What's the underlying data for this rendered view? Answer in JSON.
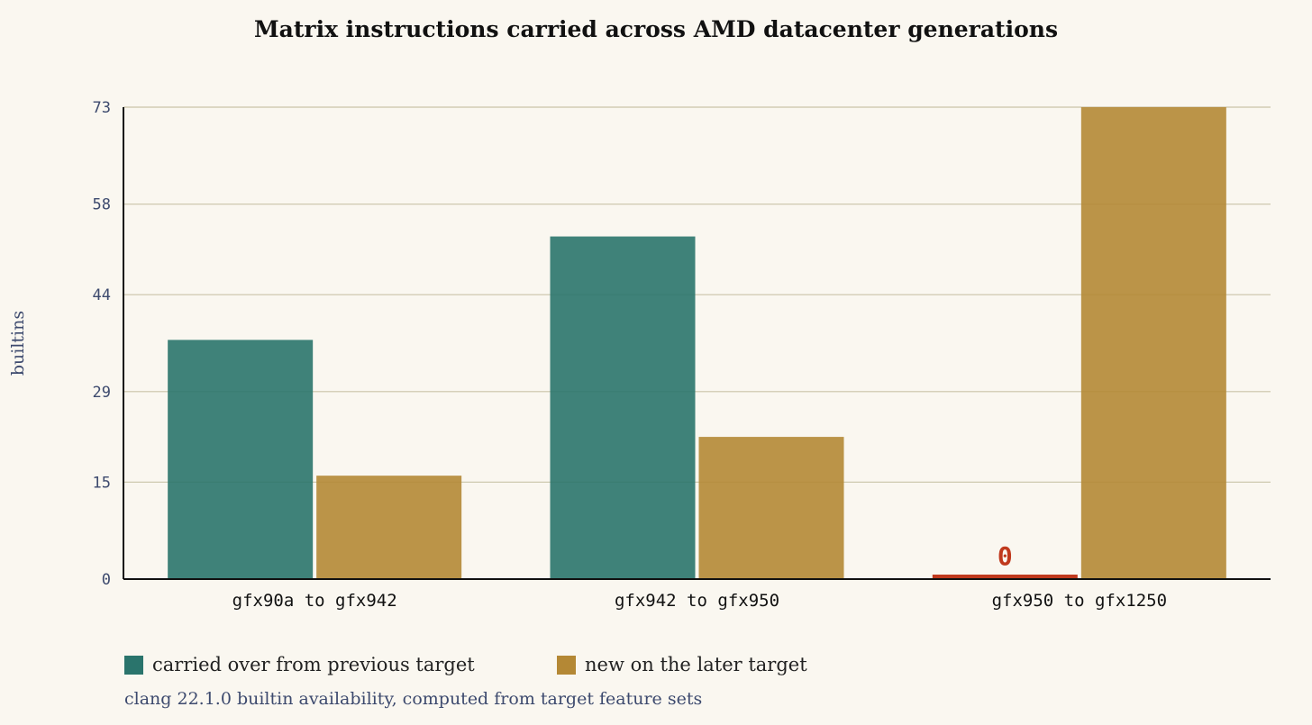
{
  "colors": {
    "background": "#faf7f0",
    "carried": "#2a746c",
    "new": "#b48835",
    "zero_marker": "#c0391d",
    "grid": "#c9c4a8",
    "axis": "#111111",
    "tick_text": "#3d4a6e"
  },
  "chart_data": {
    "type": "bar",
    "title": "Matrix instructions carried across AMD datacenter generations",
    "xlabel": "",
    "ylabel": "builtins",
    "categories": [
      "gfx90a to gfx942",
      "gfx942 to gfx950",
      "gfx950 to gfx1250"
    ],
    "series": [
      {
        "name": "carried over from previous target",
        "values": [
          37,
          53,
          0
        ]
      },
      {
        "name": "new on the later target",
        "values": [
          16,
          22,
          73
        ]
      }
    ],
    "ylim": [
      0,
      73
    ],
    "yticks": [
      0,
      15,
      29,
      44,
      58,
      73
    ],
    "ytick_labels": [
      "0",
      "15",
      "29",
      "44",
      "58",
      "73"
    ],
    "annotations": [
      {
        "category": "gfx950 to gfx1250",
        "series": "carried over from previous target",
        "text": "0"
      }
    ],
    "grid": true,
    "legend_position": "bottom-left"
  },
  "caption": "clang 22.1.0 builtin availability, computed from target feature sets"
}
